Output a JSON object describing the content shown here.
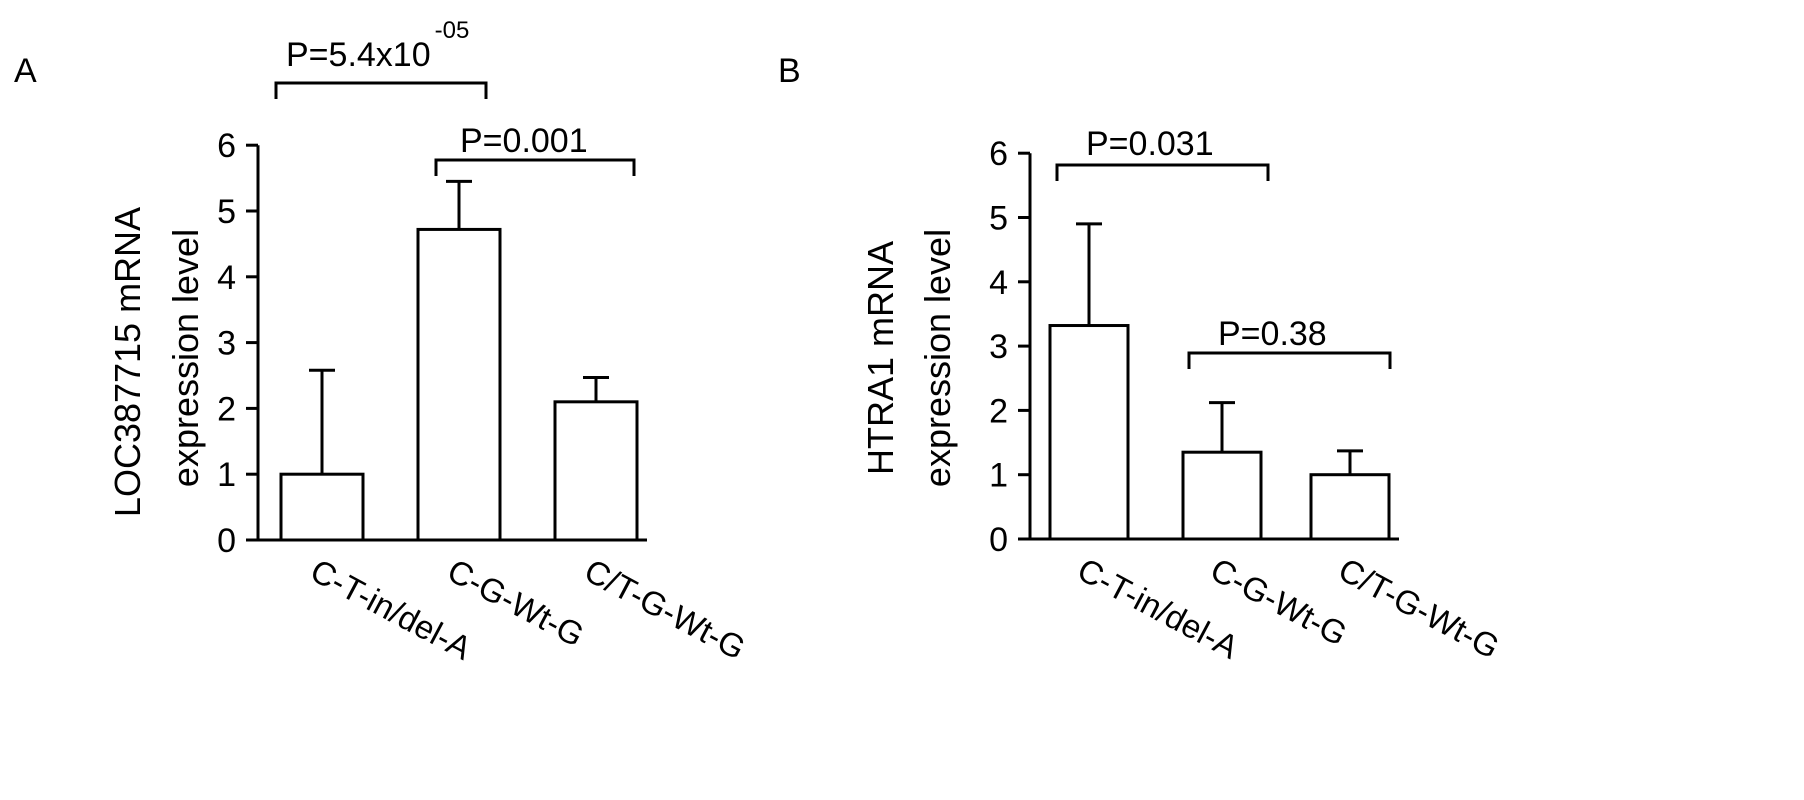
{
  "chart_data": [
    {
      "panel_label": "A",
      "type": "bar",
      "categories": [
        "C-T-in/del-A",
        "C-G-Wt-G",
        "C/T-G-Wt-G"
      ],
      "values": [
        1.0,
        4.72,
        2.1
      ],
      "error_upper": [
        2.58,
        5.45,
        2.47
      ],
      "ylabel_line1": "LOC387715 mRNA",
      "ylabel_line2": "expression level",
      "ylim": [
        0,
        6
      ],
      "yticks": [
        "0",
        "1",
        "2",
        "3",
        "4",
        "5",
        "6"
      ],
      "comparisons": [
        {
          "from": 0,
          "to": 1,
          "label": "P=5.4x10",
          "superscript": "-05"
        },
        {
          "from": 1,
          "to": 2,
          "label": "P=0.001",
          "superscript": ""
        }
      ]
    },
    {
      "panel_label": "B",
      "type": "bar",
      "categories": [
        "C-T-in/del-A",
        "C-G-Wt-G",
        "C/T-G-Wt-G"
      ],
      "values": [
        3.32,
        1.35,
        1.0
      ],
      "error_upper": [
        4.9,
        2.12,
        1.37
      ],
      "ylabel_line1": "HTRA1 mRNA",
      "ylabel_line2": "expression level",
      "ylim": [
        0,
        6
      ],
      "yticks": [
        "0",
        "1",
        "2",
        "3",
        "4",
        "5",
        "6"
      ],
      "comparisons": [
        {
          "from": 0,
          "to": 1,
          "label": "P=0.031",
          "superscript": ""
        },
        {
          "from": 1,
          "to": 2,
          "label": "P=0.38",
          "superscript": ""
        }
      ]
    }
  ]
}
